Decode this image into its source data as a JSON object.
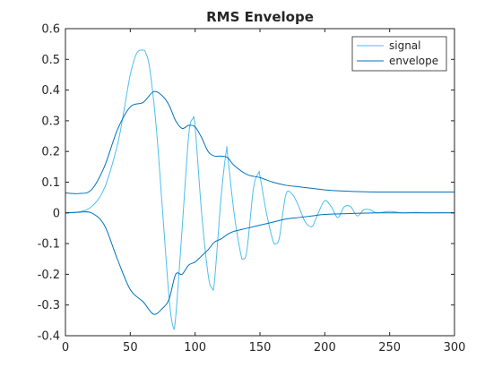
{
  "chart_data": {
    "type": "line",
    "title": "RMS Envelope",
    "xlabel": "",
    "ylabel": "",
    "xlim": [
      0,
      300
    ],
    "ylim": [
      -0.4,
      0.6
    ],
    "xticks": [
      0,
      50,
      100,
      150,
      200,
      250,
      300
    ],
    "yticks": [
      -0.4,
      -0.3,
      -0.2,
      -0.1,
      0,
      0.1,
      0.2,
      0.3,
      0.4,
      0.5,
      0.6
    ],
    "xtick_labels": [
      "0",
      "50",
      "100",
      "150",
      "200",
      "250",
      "300"
    ],
    "ytick_labels": [
      "-0.4",
      "-0.3",
      "-0.2",
      "-0.1",
      "0",
      "0.1",
      "0.2",
      "0.3",
      "0.4",
      "0.5",
      "0.6"
    ],
    "legend": {
      "position": "top-right",
      "box": true
    },
    "grid": false,
    "series": [
      {
        "name": "signal",
        "color": "#4dbeee",
        "x": [
          0,
          10,
          20,
          30,
          40,
          45,
          50,
          55,
          60,
          62,
          65,
          70,
          75,
          80,
          83,
          85,
          90,
          95,
          98,
          100,
          105,
          110,
          113,
          115,
          120,
          124,
          125,
          130,
          135,
          137,
          140,
          145,
          149,
          150,
          155,
          160,
          162,
          165,
          170,
          175,
          179,
          180,
          185,
          190,
          193,
          195,
          200,
          205,
          210,
          215,
          220,
          225,
          230,
          235,
          240,
          250,
          260,
          270,
          280,
          290,
          300
        ],
        "values": [
          0,
          0.003,
          0.02,
          0.08,
          0.22,
          0.33,
          0.45,
          0.52,
          0.53,
          0.52,
          0.47,
          0.28,
          0.0,
          -0.28,
          -0.37,
          -0.34,
          -0.05,
          0.25,
          0.305,
          0.28,
          0.0,
          -0.2,
          -0.245,
          -0.22,
          0.05,
          0.2,
          0.19,
          0.0,
          -0.13,
          -0.15,
          -0.12,
          0.08,
          0.13,
          0.12,
          0.0,
          -0.09,
          -0.1,
          -0.08,
          0.06,
          0.06,
          0.03,
          0.02,
          -0.03,
          -0.045,
          -0.02,
          0.0,
          0.04,
          0.02,
          -0.015,
          0.02,
          0.02,
          -0.01,
          0.01,
          0.01,
          0.0,
          0.005,
          0.0,
          0.002,
          0.0,
          0.001,
          0.0
        ]
      },
      {
        "name": "envelope",
        "color": "#0072bd",
        "x": [
          0,
          10,
          20,
          30,
          40,
          50,
          60,
          68,
          75,
          80,
          85,
          90,
          95,
          100,
          105,
          110,
          115,
          120,
          125,
          130,
          140,
          150,
          160,
          170,
          180,
          190,
          200,
          220,
          240,
          260,
          280,
          300
        ],
        "upper": [
          0.065,
          0.063,
          0.075,
          0.15,
          0.27,
          0.345,
          0.36,
          0.395,
          0.38,
          0.35,
          0.3,
          0.275,
          0.285,
          0.28,
          0.245,
          0.2,
          0.185,
          0.185,
          0.18,
          0.155,
          0.125,
          0.115,
          0.1,
          0.09,
          0.085,
          0.08,
          0.075,
          0.07,
          0.068,
          0.068,
          0.068,
          0.068
        ],
        "lower": [
          0.0,
          0.002,
          0.0,
          -0.04,
          -0.15,
          -0.25,
          -0.29,
          -0.33,
          -0.31,
          -0.28,
          -0.2,
          -0.2,
          -0.17,
          -0.16,
          -0.14,
          -0.12,
          -0.095,
          -0.085,
          -0.07,
          -0.06,
          -0.05,
          -0.04,
          -0.03,
          -0.02,
          -0.015,
          -0.01,
          -0.005,
          -0.002,
          0.0,
          0.0,
          0.0,
          0.0
        ]
      }
    ]
  }
}
